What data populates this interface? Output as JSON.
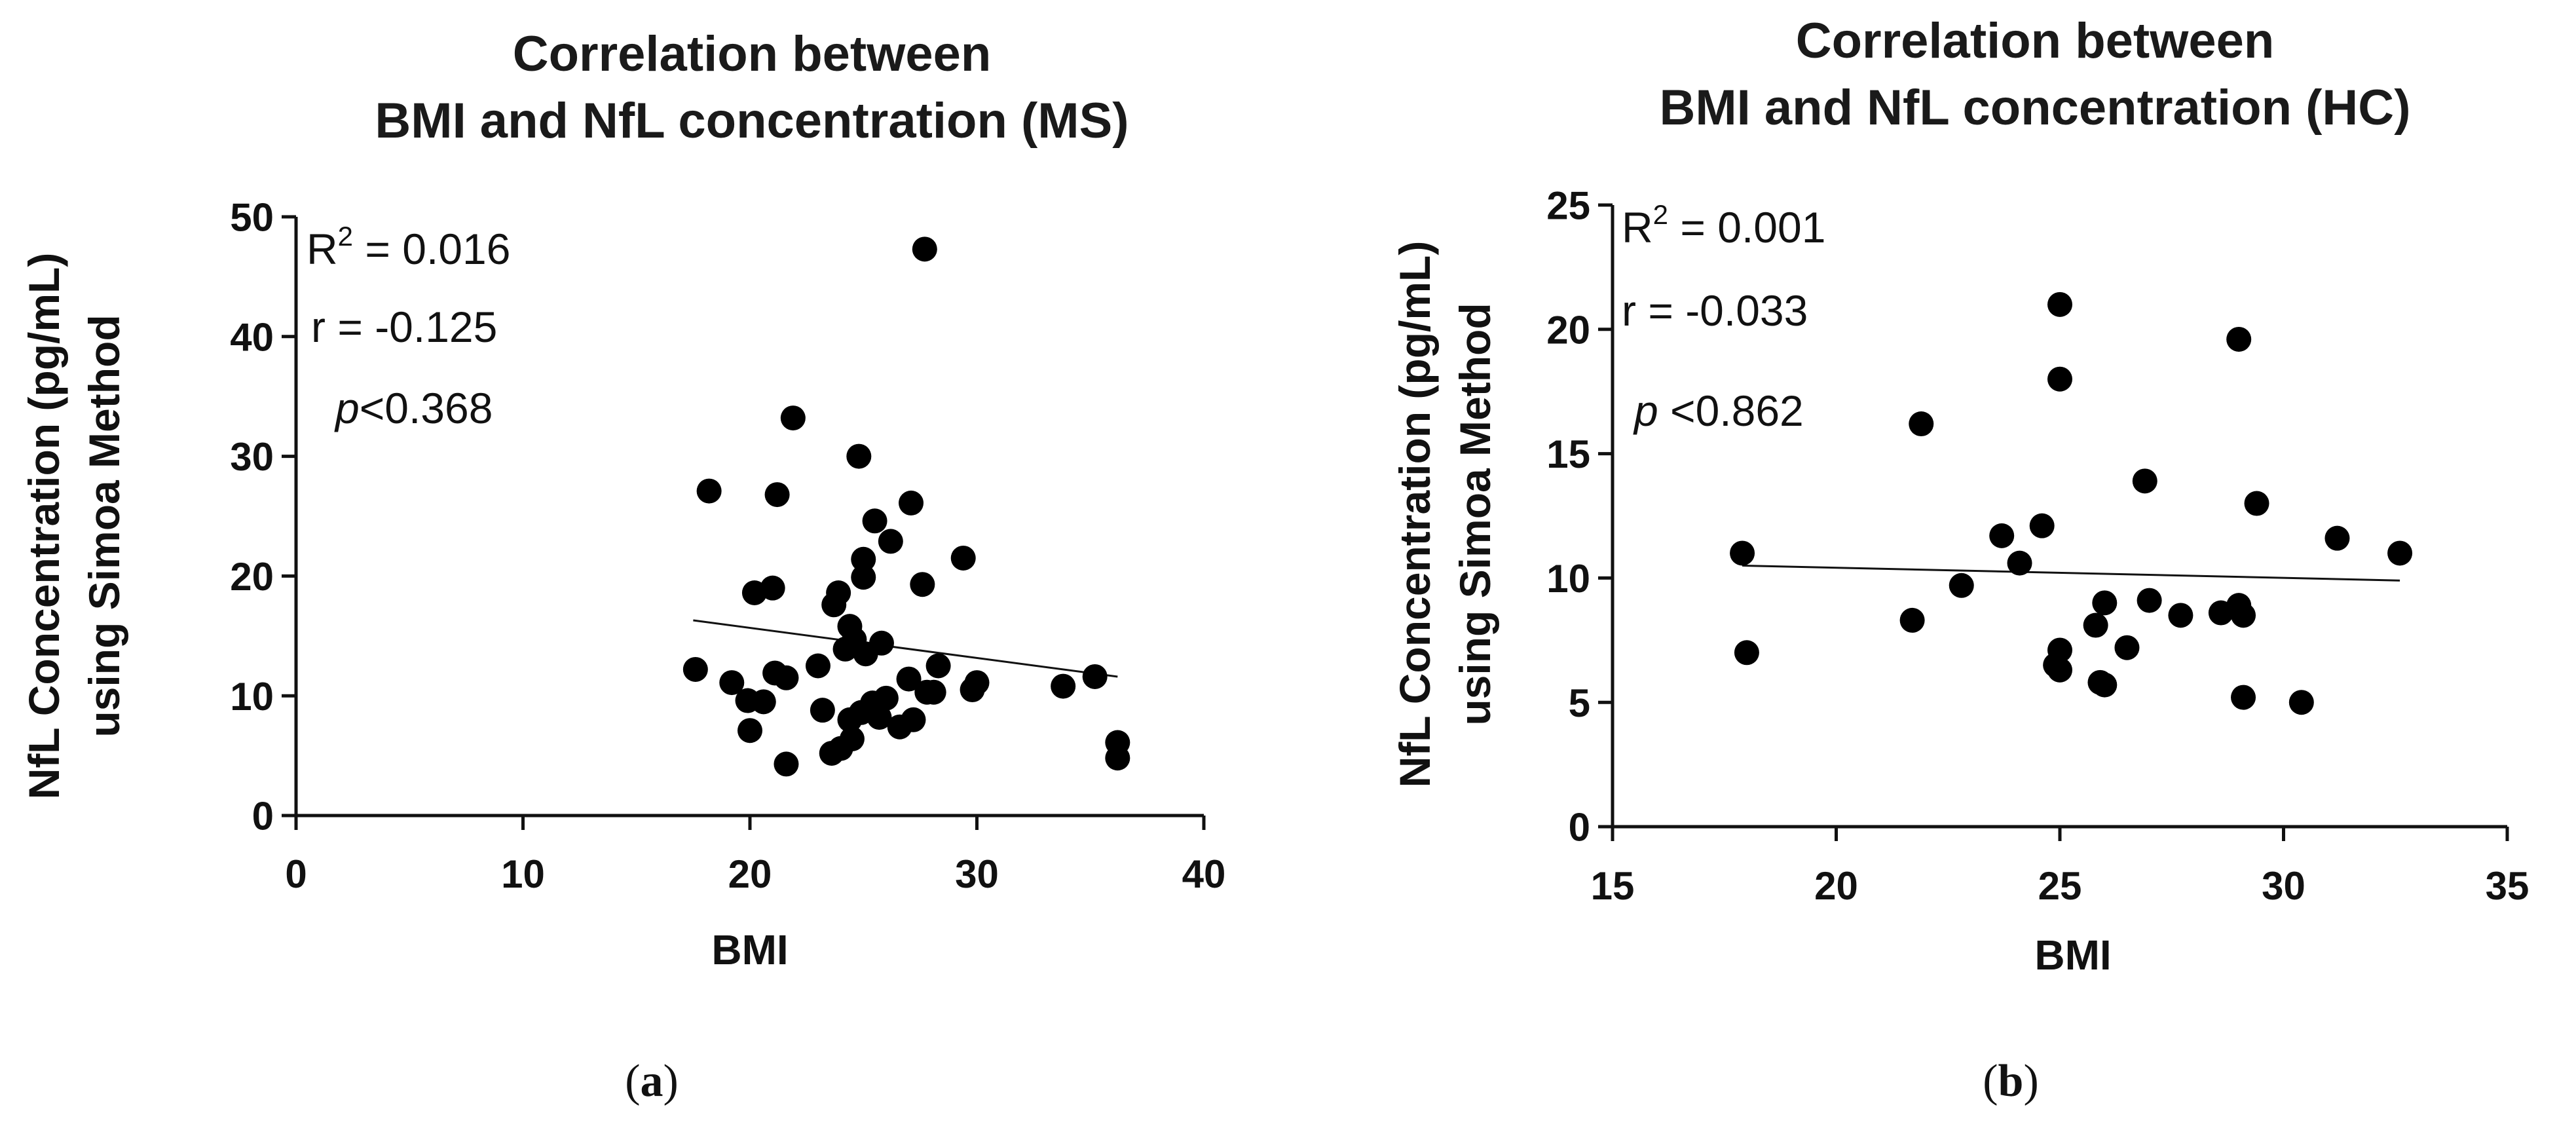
{
  "chart_data": [
    {
      "type": "scatter",
      "title": [
        "Correlation between",
        "BMI and NfL concentration (MS)"
      ],
      "xlabel": "BMI",
      "ylabel": [
        "NfL Concentration (pg/mL)",
        "using Simoa Method"
      ],
      "xlim": [
        0,
        40
      ],
      "ylim": [
        0,
        50
      ],
      "xticks": [
        0,
        10,
        20,
        30,
        40
      ],
      "yticks": [
        0,
        10,
        20,
        30,
        40,
        50
      ],
      "grid": false,
      "annotations": {
        "r2_prefix": "R",
        "r2_sup": "2",
        "r2_value": " = 0.016",
        "r": "r = -0.125",
        "p_symbol": "p",
        "p_value": "<0.368"
      },
      "trendline": {
        "x": [
          17.5,
          36.2
        ],
        "y": [
          16.3,
          11.6
        ]
      },
      "caption": [
        "(",
        "a",
        ")"
      ],
      "points": [
        [
          17.6,
          12.2
        ],
        [
          18.2,
          27.1
        ],
        [
          19.2,
          11.1
        ],
        [
          19.9,
          9.6
        ],
        [
          20.0,
          7.1
        ],
        [
          20.2,
          18.6
        ],
        [
          20.6,
          9.5
        ],
        [
          21.0,
          19.0
        ],
        [
          21.1,
          11.9
        ],
        [
          21.2,
          26.8
        ],
        [
          21.6,
          4.3
        ],
        [
          21.6,
          11.5
        ],
        [
          21.9,
          33.2
        ],
        [
          23.0,
          12.5
        ],
        [
          23.2,
          8.8
        ],
        [
          23.6,
          5.2
        ],
        [
          23.7,
          17.6
        ],
        [
          23.9,
          18.6
        ],
        [
          24.0,
          5.6
        ],
        [
          24.2,
          13.9
        ],
        [
          24.4,
          8.0
        ],
        [
          24.4,
          15.8
        ],
        [
          24.5,
          6.4
        ],
        [
          24.6,
          14.7
        ],
        [
          24.8,
          30.0
        ],
        [
          24.9,
          8.6
        ],
        [
          25.0,
          19.9
        ],
        [
          25.0,
          21.4
        ],
        [
          25.1,
          13.5
        ],
        [
          25.4,
          9.4
        ],
        [
          25.5,
          24.6
        ],
        [
          25.7,
          8.2
        ],
        [
          25.8,
          14.4
        ],
        [
          26.0,
          9.8
        ],
        [
          26.2,
          22.9
        ],
        [
          26.6,
          7.4
        ],
        [
          27.0,
          11.4
        ],
        [
          27.1,
          26.1
        ],
        [
          27.2,
          8.0
        ],
        [
          27.6,
          19.3
        ],
        [
          27.7,
          47.3
        ],
        [
          27.8,
          10.3
        ],
        [
          28.1,
          10.3
        ],
        [
          28.3,
          12.5
        ],
        [
          29.4,
          21.5
        ],
        [
          29.8,
          10.5
        ],
        [
          30.0,
          11.1
        ],
        [
          33.8,
          10.8
        ],
        [
          35.2,
          11.6
        ],
        [
          36.2,
          6.1
        ],
        [
          36.2,
          4.8
        ]
      ]
    },
    {
      "type": "scatter",
      "title": [
        "Correlation between",
        "BMI and NfL concentration (HC)"
      ],
      "xlabel": "BMI",
      "ylabel": [
        "NfL Concentration (pg/mL)",
        "using Simoa Method"
      ],
      "xlim": [
        15,
        35
      ],
      "ylim": [
        0,
        25
      ],
      "xticks": [
        15,
        20,
        25,
        30,
        35
      ],
      "yticks": [
        0,
        5,
        10,
        15,
        20,
        25
      ],
      "grid": false,
      "annotations": {
        "r2_prefix": "R",
        "r2_sup": "2",
        "r2_value": " = 0.001",
        "r": "r = -0.033",
        "p_symbol": "p",
        "p_value": " <0.862"
      },
      "trendline": {
        "x": [
          17.9,
          32.6
        ],
        "y": [
          10.5,
          9.9
        ]
      },
      "caption": [
        "(",
        "b",
        ")"
      ],
      "points": [
        [
          17.9,
          11.0
        ],
        [
          18.0,
          7.0
        ],
        [
          21.7,
          8.3
        ],
        [
          21.9,
          16.2
        ],
        [
          22.8,
          9.7
        ],
        [
          23.7,
          11.7
        ],
        [
          24.1,
          10.6
        ],
        [
          24.6,
          12.1
        ],
        [
          24.9,
          6.5
        ],
        [
          25.0,
          6.3
        ],
        [
          25.0,
          7.1
        ],
        [
          25.0,
          18.0
        ],
        [
          25.0,
          21.0
        ],
        [
          25.8,
          8.1
        ],
        [
          25.9,
          5.8
        ],
        [
          26.0,
          5.7
        ],
        [
          26.0,
          9.0
        ],
        [
          26.5,
          7.2
        ],
        [
          26.9,
          13.9
        ],
        [
          27.0,
          9.1
        ],
        [
          27.7,
          8.5
        ],
        [
          28.6,
          8.6
        ],
        [
          29.0,
          8.9
        ],
        [
          29.0,
          19.6
        ],
        [
          29.1,
          8.5
        ],
        [
          29.1,
          5.2
        ],
        [
          29.4,
          13.0
        ],
        [
          30.4,
          5.0
        ],
        [
          31.2,
          11.6
        ],
        [
          32.6,
          11.0
        ]
      ]
    }
  ]
}
